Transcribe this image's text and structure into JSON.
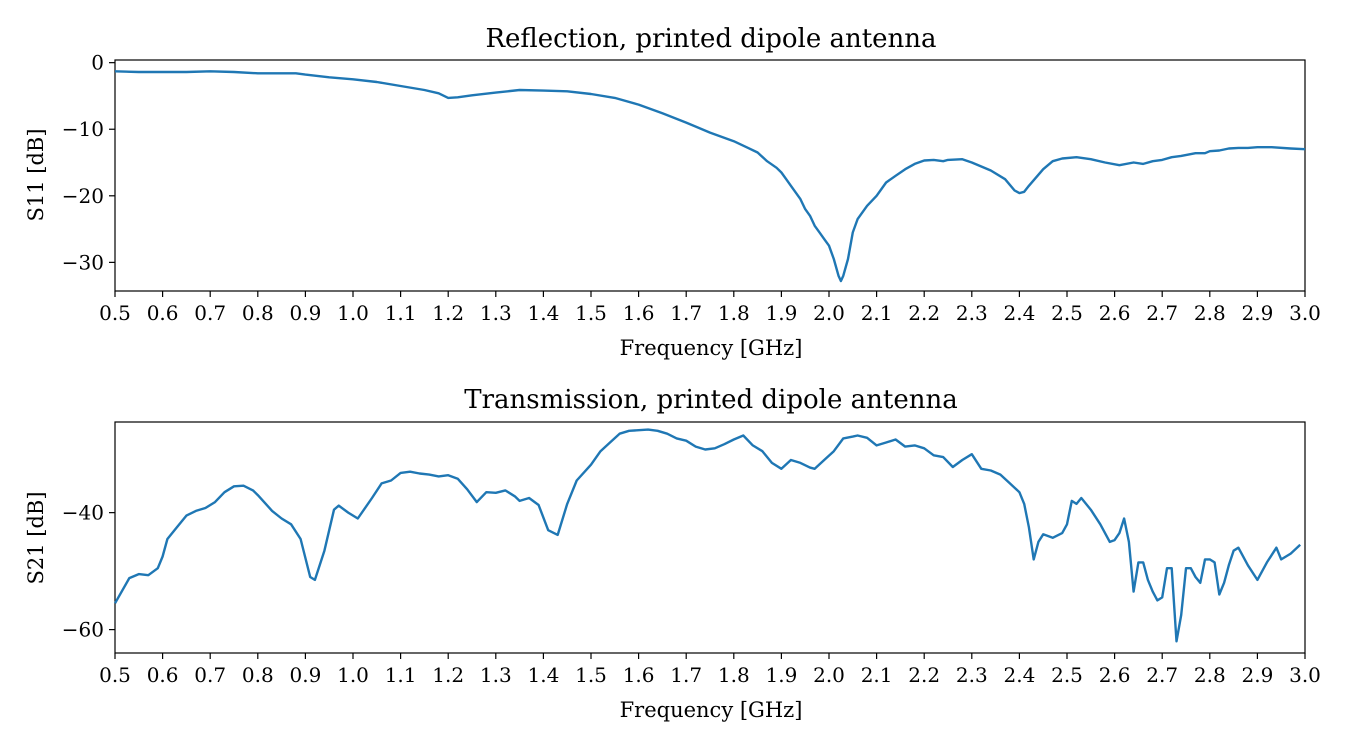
{
  "colors": {
    "line": "#1f77b4"
  },
  "chart_data": [
    {
      "type": "line",
      "title": "Reflection, printed dipole antenna",
      "xlabel": "Frequency [GHz]",
      "ylabel": "S11 [dB]",
      "xlim": [
        0.5,
        3.0
      ],
      "ylim": [
        -34.3,
        0.4
      ],
      "xticks": [
        0.5,
        0.6,
        0.7,
        0.8,
        0.9,
        1.0,
        1.1,
        1.2,
        1.3,
        1.4,
        1.5,
        1.6,
        1.7,
        1.8,
        1.9,
        2.0,
        2.1,
        2.2,
        2.3,
        2.4,
        2.5,
        2.6,
        2.7,
        2.8,
        2.9,
        3.0
      ],
      "xtick_labels": [
        "0.5",
        "0.6",
        "0.7",
        "0.8",
        "0.9",
        "1.0",
        "1.1",
        "1.2",
        "1.3",
        "1.4",
        "1.5",
        "1.6",
        "1.7",
        "1.8",
        "1.9",
        "2.0",
        "2.1",
        "2.2",
        "2.3",
        "2.4",
        "2.5",
        "2.6",
        "2.7",
        "2.8",
        "2.9",
        "3.0"
      ],
      "yticks": [
        0,
        -10,
        -20,
        -30
      ],
      "ytick_labels": [
        "0",
        "−10",
        "−20",
        "−30"
      ],
      "grid": false,
      "series": [
        {
          "x": [
            0.5,
            0.55,
            0.6,
            0.65,
            0.7,
            0.75,
            0.8,
            0.85,
            0.88,
            0.9,
            0.95,
            1.0,
            1.05,
            1.1,
            1.15,
            1.18,
            1.2,
            1.22,
            1.25,
            1.3,
            1.35,
            1.4,
            1.45,
            1.5,
            1.55,
            1.6,
            1.65,
            1.7,
            1.75,
            1.8,
            1.83,
            1.85,
            1.87,
            1.89,
            1.9,
            1.91,
            1.92,
            1.94,
            1.95,
            1.96,
            1.97,
            1.98,
            1.99,
            2.0,
            2.01,
            2.02,
            2.025,
            2.03,
            2.04,
            2.05,
            2.06,
            2.08,
            2.1,
            2.12,
            2.14,
            2.16,
            2.18,
            2.2,
            2.22,
            2.24,
            2.25,
            2.28,
            2.3,
            2.34,
            2.37,
            2.39,
            2.4,
            2.41,
            2.42,
            2.45,
            2.47,
            2.49,
            2.52,
            2.55,
            2.58,
            2.61,
            2.64,
            2.66,
            2.68,
            2.7,
            2.72,
            2.74,
            2.77,
            2.79,
            2.8,
            2.82,
            2.84,
            2.86,
            2.88,
            2.9,
            2.93,
            2.97,
            3.0
          ],
          "y": [
            -1.3,
            -1.4,
            -1.4,
            -1.4,
            -1.3,
            -1.4,
            -1.6,
            -1.6,
            -1.6,
            -1.8,
            -2.2,
            -2.5,
            -2.9,
            -3.5,
            -4.1,
            -4.6,
            -5.3,
            -5.2,
            -4.9,
            -4.5,
            -4.1,
            -4.2,
            -4.3,
            -4.7,
            -5.3,
            -6.3,
            -7.6,
            -9.0,
            -10.5,
            -11.8,
            -12.8,
            -13.5,
            -14.8,
            -15.8,
            -16.5,
            -17.5,
            -18.5,
            -20.5,
            -22.0,
            -23.0,
            -24.5,
            -25.5,
            -26.5,
            -27.5,
            -29.5,
            -32.0,
            -32.8,
            -32.0,
            -29.5,
            -25.5,
            -23.5,
            -21.5,
            -20.0,
            -18.0,
            -17.0,
            -16.0,
            -15.2,
            -14.7,
            -14.6,
            -14.8,
            -14.6,
            -14.5,
            -15.0,
            -16.2,
            -17.5,
            -19.2,
            -19.6,
            -19.4,
            -18.5,
            -16.0,
            -14.8,
            -14.4,
            -14.2,
            -14.5,
            -15.0,
            -15.4,
            -15.0,
            -15.2,
            -14.8,
            -14.6,
            -14.2,
            -14.0,
            -13.6,
            -13.6,
            -13.3,
            -13.2,
            -12.9,
            -12.8,
            -12.8,
            -12.7,
            -12.7,
            -12.9,
            -13.0
          ]
        }
      ]
    },
    {
      "type": "line",
      "title": "Transmission, printed dipole antenna",
      "xlabel": "Frequency [GHz]",
      "ylabel": "S21 [dB]",
      "xlim": [
        0.5,
        3.0
      ],
      "ylim": [
        -64.0,
        -24.5
      ],
      "xticks": [
        0.5,
        0.6,
        0.7,
        0.8,
        0.9,
        1.0,
        1.1,
        1.2,
        1.3,
        1.4,
        1.5,
        1.6,
        1.7,
        1.8,
        1.9,
        2.0,
        2.1,
        2.2,
        2.3,
        2.4,
        2.5,
        2.6,
        2.7,
        2.8,
        2.9,
        3.0
      ],
      "xtick_labels": [
        "0.5",
        "0.6",
        "0.7",
        "0.8",
        "0.9",
        "1.0",
        "1.1",
        "1.2",
        "1.3",
        "1.4",
        "1.5",
        "1.6",
        "1.7",
        "1.8",
        "1.9",
        "2.0",
        "2.1",
        "2.2",
        "2.3",
        "2.4",
        "2.5",
        "2.6",
        "2.7",
        "2.8",
        "2.9",
        "3.0"
      ],
      "yticks": [
        -40,
        -60
      ],
      "ytick_labels": [
        "−40",
        "−60"
      ],
      "grid": false,
      "series": [
        {
          "x": [
            0.5,
            0.53,
            0.55,
            0.57,
            0.59,
            0.6,
            0.61,
            0.63,
            0.65,
            0.67,
            0.69,
            0.71,
            0.73,
            0.75,
            0.77,
            0.79,
            0.8,
            0.83,
            0.85,
            0.87,
            0.89,
            0.91,
            0.92,
            0.94,
            0.96,
            0.97,
            0.99,
            1.01,
            1.04,
            1.06,
            1.08,
            1.1,
            1.12,
            1.14,
            1.16,
            1.18,
            1.2,
            1.22,
            1.24,
            1.26,
            1.28,
            1.3,
            1.32,
            1.34,
            1.35,
            1.37,
            1.39,
            1.41,
            1.43,
            1.45,
            1.47,
            1.5,
            1.52,
            1.54,
            1.56,
            1.58,
            1.6,
            1.62,
            1.64,
            1.66,
            1.68,
            1.7,
            1.72,
            1.74,
            1.76,
            1.78,
            1.8,
            1.82,
            1.84,
            1.86,
            1.88,
            1.9,
            1.92,
            1.94,
            1.96,
            1.97,
            1.99,
            2.01,
            2.03,
            2.05,
            2.06,
            2.08,
            2.1,
            2.12,
            2.14,
            2.16,
            2.18,
            2.2,
            2.22,
            2.24,
            2.26,
            2.28,
            2.3,
            2.32,
            2.34,
            2.36,
            2.38,
            2.4,
            2.41,
            2.42,
            2.43,
            2.44,
            2.45,
            2.47,
            2.49,
            2.5,
            2.51,
            2.52,
            2.53,
            2.55,
            2.57,
            2.59,
            2.6,
            2.61,
            2.62,
            2.63,
            2.64,
            2.65,
            2.66,
            2.67,
            2.68,
            2.69,
            2.7,
            2.71,
            2.72,
            2.73,
            2.74,
            2.75,
            2.76,
            2.77,
            2.78,
            2.79,
            2.8,
            2.81,
            2.82,
            2.83,
            2.84,
            2.85,
            2.86,
            2.88,
            2.9,
            2.92,
            2.94,
            2.95,
            2.97,
            2.99
          ],
          "y": [
            -55.5,
            -51.2,
            -50.5,
            -50.7,
            -49.5,
            -47.5,
            -44.5,
            -42.5,
            -40.5,
            -39.7,
            -39.2,
            -38.2,
            -36.5,
            -35.5,
            -35.4,
            -36.2,
            -37.0,
            -39.7,
            -41.0,
            -42.0,
            -44.5,
            -51.0,
            -51.5,
            -46.5,
            -39.5,
            -38.8,
            -40.0,
            -41.0,
            -37.5,
            -35.0,
            -34.5,
            -33.2,
            -33.0,
            -33.3,
            -33.5,
            -33.8,
            -33.6,
            -34.2,
            -36.0,
            -38.2,
            -36.5,
            -36.6,
            -36.2,
            -37.2,
            -38.0,
            -37.5,
            -38.7,
            -43.0,
            -43.8,
            -38.5,
            -34.5,
            -31.8,
            -29.5,
            -28.0,
            -26.5,
            -26.0,
            -25.9,
            -25.8,
            -26.0,
            -26.5,
            -27.3,
            -27.7,
            -28.7,
            -29.2,
            -29.0,
            -28.3,
            -27.5,
            -26.8,
            -28.5,
            -29.5,
            -31.5,
            -32.5,
            -31.0,
            -31.5,
            -32.3,
            -32.5,
            -31.0,
            -29.5,
            -27.3,
            -27.0,
            -26.8,
            -27.2,
            -28.5,
            -28.0,
            -27.5,
            -28.7,
            -28.5,
            -29.0,
            -30.2,
            -30.5,
            -32.2,
            -31.0,
            -30.0,
            -32.5,
            -32.8,
            -33.5,
            -35.0,
            -36.5,
            -38.5,
            -42.5,
            -48.0,
            -45.0,
            -43.7,
            -44.3,
            -43.5,
            -42.0,
            -38.0,
            -38.5,
            -37.5,
            -39.5,
            -42.0,
            -45.0,
            -44.7,
            -43.5,
            -41.0,
            -45.0,
            -53.5,
            -48.5,
            -48.5,
            -51.5,
            -53.5,
            -55.0,
            -54.5,
            -49.5,
            -49.5,
            -62.0,
            -57.5,
            -49.5,
            -49.5,
            -51.0,
            -52.0,
            -48.0,
            -48.0,
            -48.5,
            -54.0,
            -52.0,
            -49.0,
            -46.5,
            -46.0,
            -49.0,
            -51.5,
            -48.5,
            -46.0,
            -48.0,
            -47.0,
            -45.5
          ]
        }
      ]
    }
  ]
}
